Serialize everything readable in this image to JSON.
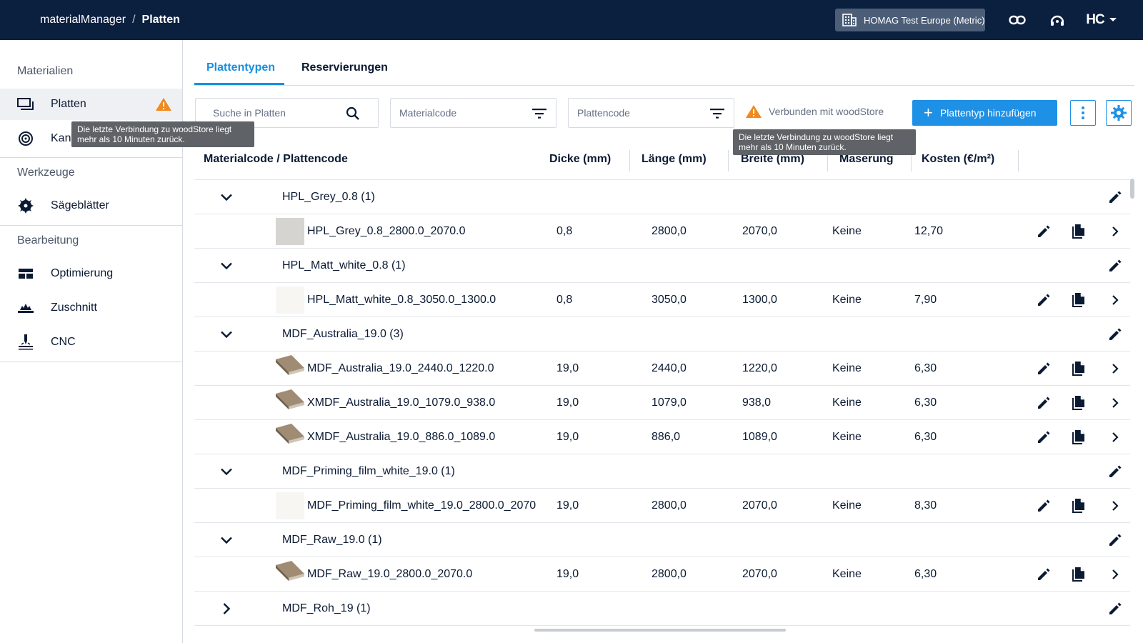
{
  "header": {
    "app_name": "materialManager",
    "separator": "/",
    "page_name": "Platten",
    "tenant": "HOMAG Test Europe (Metric)",
    "logo_text": "HC"
  },
  "sidebar": {
    "sections": [
      {
        "heading": "Materialien",
        "items": [
          {
            "label": "Platten",
            "icon": "boards-icon",
            "active": true,
            "warning": true
          },
          {
            "label": "Kanten",
            "icon": "edge-roll-icon",
            "active": false
          }
        ]
      },
      {
        "heading": "Werkzeuge",
        "items": [
          {
            "label": "Sägeblätter",
            "icon": "saw-blade-icon",
            "active": false
          }
        ]
      },
      {
        "heading": "Bearbeitung",
        "items": [
          {
            "label": "Optimierung",
            "icon": "optimization-icon",
            "active": false
          },
          {
            "label": "Zuschnitt",
            "icon": "cutting-icon",
            "active": false
          },
          {
            "label": "CNC",
            "icon": "cnc-icon",
            "active": false
          }
        ]
      }
    ],
    "collapse_label": "«"
  },
  "tooltips": {
    "sidebar_warning": "Die letzte Verbindung zu woodStore liegt mehr als 10 Minuten zurück.",
    "connection_warning": "Die letzte Verbindung zu woodStore liegt mehr als 10 Minuten zurück."
  },
  "tabs": [
    {
      "label": "Plattentypen",
      "active": true
    },
    {
      "label": "Reservierungen",
      "active": false
    }
  ],
  "filters": {
    "search_placeholder": "Suche in Platten",
    "material_code_placeholder": "Materialcode",
    "board_code_placeholder": "Plattencode"
  },
  "connection_status": "Verbunden mit woodStore",
  "add_button_label": "Plattentyp hinzufügen",
  "colors": {
    "header_bg": "#0b1f3f",
    "accent": "#1e90e6",
    "warning": "#f08a1c"
  },
  "table": {
    "columns": [
      "Materialcode / Plattencode",
      "Dicke (mm)",
      "Länge (mm)",
      "Breite (mm)",
      "Maserung",
      "Kosten (€/m²)"
    ],
    "groups": [
      {
        "name": "HPL_Grey_0.8 (1)",
        "expanded": true,
        "items": [
          {
            "code": "HPL_Grey_0.8_2800.0_2070.0",
            "thickness": "0,8",
            "length": "2800,0",
            "width": "2070,0",
            "grain": "Keine",
            "cost": "12,70",
            "swatch": "grey"
          }
        ]
      },
      {
        "name": "HPL_Matt_white_0.8 (1)",
        "expanded": true,
        "items": [
          {
            "code": "HPL_Matt_white_0.8_3050.0_1300.0",
            "thickness": "0,8",
            "length": "3050,0",
            "width": "1300,0",
            "grain": "Keine",
            "cost": "7,90",
            "swatch": "white"
          }
        ]
      },
      {
        "name": "MDF_Australia_19.0 (3)",
        "expanded": true,
        "items": [
          {
            "code": "MDF_Australia_19.0_2440.0_1220.0",
            "thickness": "19,0",
            "length": "2440,0",
            "width": "1220,0",
            "grain": "Keine",
            "cost": "6,30",
            "swatch": "mdf"
          },
          {
            "code": "XMDF_Australia_19.0_1079.0_938.0",
            "thickness": "19,0",
            "length": "1079,0",
            "width": "938,0",
            "grain": "Keine",
            "cost": "6,30",
            "swatch": "mdf"
          },
          {
            "code": "XMDF_Australia_19.0_886.0_1089.0",
            "thickness": "19,0",
            "length": "886,0",
            "width": "1089,0",
            "grain": "Keine",
            "cost": "6,30",
            "swatch": "mdf"
          }
        ]
      },
      {
        "name": "MDF_Priming_film_white_19.0 (1)",
        "expanded": true,
        "items": [
          {
            "code": "MDF_Priming_film_white_19.0_2800.0_2070",
            "thickness": "19,0",
            "length": "2800,0",
            "width": "2070,0",
            "grain": "Keine",
            "cost": "8,30",
            "swatch": "white"
          }
        ]
      },
      {
        "name": "MDF_Raw_19.0 (1)",
        "expanded": true,
        "items": [
          {
            "code": "MDF_Raw_19.0_2800.0_2070.0",
            "thickness": "19,0",
            "length": "2800,0",
            "width": "2070,0",
            "grain": "Keine",
            "cost": "6,30",
            "swatch": "mdf"
          }
        ]
      },
      {
        "name": "MDF_Roh_19 (1)",
        "expanded": false,
        "items": []
      }
    ]
  }
}
